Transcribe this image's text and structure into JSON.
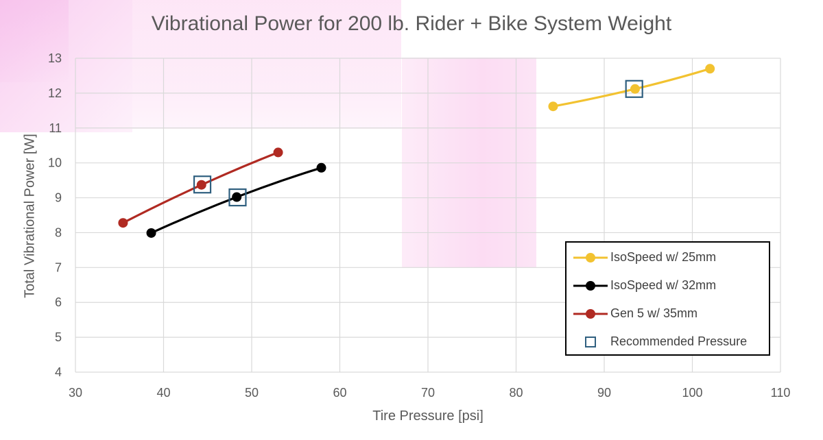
{
  "chart_data": {
    "type": "line",
    "title": "Vibrational Power for 200 lb. Rider + Bike System Weight",
    "xlabel": "Tire Pressure [psi]",
    "ylabel": "Total Vibrational Power [W]",
    "xlim": [
      30,
      110
    ],
    "ylim": [
      4,
      13
    ],
    "x_ticks": [
      "30",
      "40",
      "50",
      "60",
      "70",
      "80",
      "90",
      "100",
      "110"
    ],
    "y_ticks": [
      "4",
      "5",
      "6",
      "7",
      "8",
      "9",
      "10",
      "11",
      "12",
      "13"
    ],
    "grid": true,
    "legend_position": "bottom-right",
    "series": [
      {
        "name": "IsoSpeed w/ 25mm",
        "color": "#f2c230",
        "points": [
          [
            84.2,
            11.62
          ],
          [
            93.5,
            12.12
          ],
          [
            102.0,
            12.7
          ]
        ]
      },
      {
        "name": "IsoSpeed w/ 32mm",
        "color": "#000000",
        "points": [
          [
            38.6,
            7.99
          ],
          [
            48.3,
            9.02
          ],
          [
            57.9,
            9.86
          ]
        ]
      },
      {
        "name": "Gen 5 w/ 35mm",
        "color": "#b02a22",
        "points": [
          [
            35.4,
            8.28
          ],
          [
            44.3,
            9.37
          ],
          [
            53.0,
            10.3
          ]
        ]
      }
    ],
    "recommended": {
      "name": "Recommended Pressure",
      "color": "#2f5f7f",
      "points": [
        [
          93.4,
          12.12
        ],
        [
          44.4,
          9.38
        ],
        [
          48.4,
          9.01
        ]
      ]
    }
  }
}
